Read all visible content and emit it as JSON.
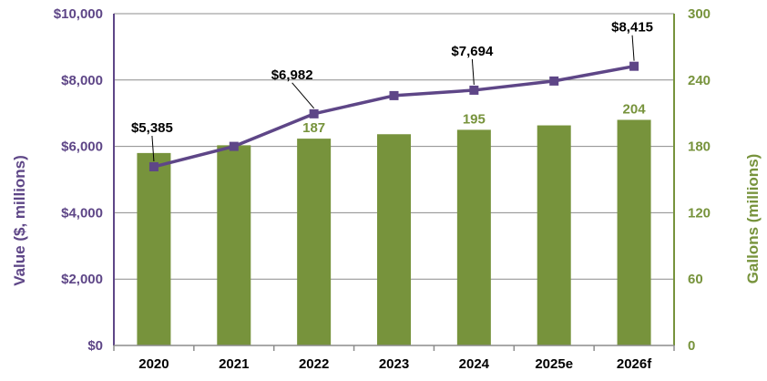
{
  "chart_data": {
    "type": "bar",
    "categories": [
      "2020",
      "2021",
      "2022",
      "2023",
      "2024",
      "2025e",
      "2026f"
    ],
    "series": [
      {
        "name": "Gallons (millions)",
        "type": "bar",
        "axis": "right",
        "values": [
          174,
          181,
          187,
          191,
          195,
          199,
          204
        ],
        "labels": {
          "2022": "187",
          "2024": "195",
          "2026f": "204"
        }
      },
      {
        "name": "Value ($, millions)",
        "type": "line",
        "axis": "left",
        "values": [
          5385,
          6000,
          6982,
          7530,
          7694,
          7970,
          8415
        ],
        "labels": {
          "2020": "$5,385",
          "2022": "$6,982",
          "2024": "$7,694",
          "2026f": "$8,415"
        }
      }
    ],
    "left_axis": {
      "title": "Value ($, millions)",
      "ylim": [
        0,
        10000
      ],
      "ticks": [
        "$0",
        "$2,000",
        "$4,000",
        "$6,000",
        "$8,000",
        "$10,000"
      ]
    },
    "right_axis": {
      "title": "Gallons (millions)",
      "ylim": [
        0,
        300
      ],
      "ticks": [
        "0",
        "60",
        "120",
        "180",
        "240",
        "300"
      ]
    },
    "grid": true,
    "legend": "none"
  },
  "colors": {
    "line": "#5e4687",
    "bar": "#77933c",
    "grid": "#8c8c8c",
    "axis_left_text": "#5e4687",
    "axis_right_text": "#77933c"
  }
}
